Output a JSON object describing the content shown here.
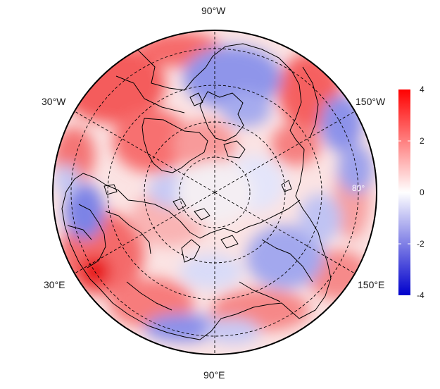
{
  "map": {
    "projection": "polar stereographic, north pole",
    "lon_labels": {
      "top": "90°W",
      "upper_left": "30°W",
      "upper_right": "150°W",
      "lower_left": "30°E",
      "lower_right": "150°E",
      "bottom": "90°E"
    },
    "lat_circle_label": "80°"
  },
  "colorbar": {
    "ticks": [
      "4",
      "2",
      "0",
      "-2",
      "-4"
    ],
    "range": [
      -4,
      4
    ],
    "colors": {
      "low": "#0000cc",
      "mid": "#ffffff",
      "high": "#ff0000"
    }
  }
}
